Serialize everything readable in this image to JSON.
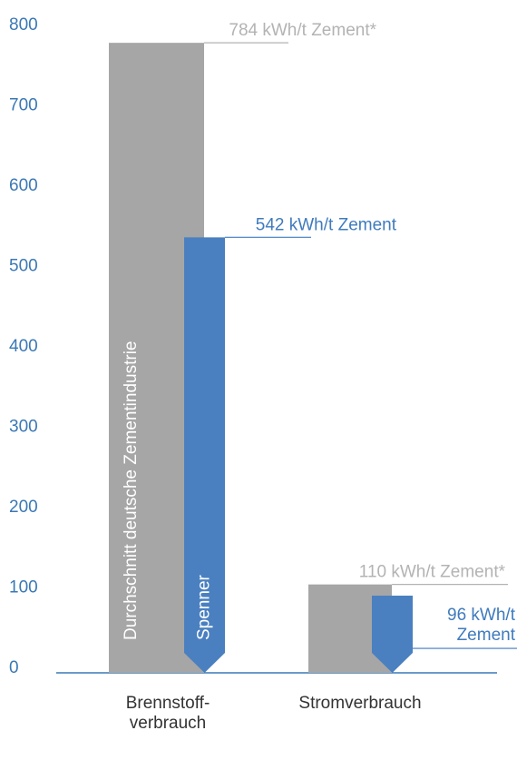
{
  "chart_data": {
    "type": "bar",
    "categories": [
      "Brennstoff-\nverbrauch",
      "Stromverbrauch"
    ],
    "series": [
      {
        "name": "Durchschnitt deutsche Zementindustrie",
        "color": "#a6a6a6",
        "label_color": "#b3b3b3",
        "values": [
          784,
          110
        ],
        "value_labels": [
          "784 kWh/t Zement*",
          "110 kWh/t Zement*"
        ]
      },
      {
        "name": "Spenner",
        "color": "#4a80c0",
        "label_color": "#3f7bbd",
        "values": [
          542,
          96
        ],
        "value_labels": [
          "542 kWh/t Zement",
          "96 kWh/t\nZement"
        ]
      }
    ],
    "ylim": [
      0,
      800
    ],
    "yticks": [
      0,
      100,
      200,
      300,
      400,
      500,
      600,
      700,
      800
    ],
    "axis_color": "#3a78b5"
  }
}
